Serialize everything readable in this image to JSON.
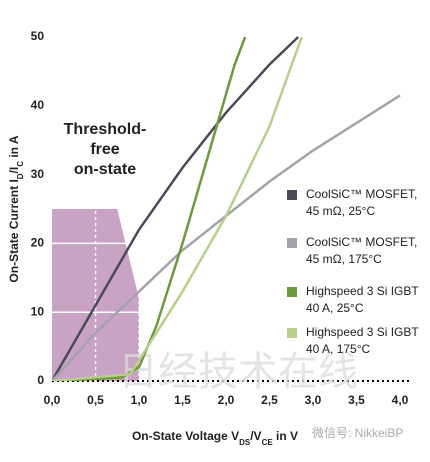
{
  "chart_data": {
    "type": "line",
    "annotation": "Threshold-free\non-state",
    "x_label_parts": [
      "On-State Voltage V",
      "DS",
      "/V",
      "CE",
      " in V"
    ],
    "y_label_parts": [
      "On-State Current I",
      "D",
      "/I",
      "C",
      " in A"
    ],
    "watermark": "日经技术在线",
    "source": "微信号: NikkeiBP",
    "xlim": [
      0,
      4
    ],
    "ylim": [
      0,
      50
    ],
    "xticks": [
      {
        "value": 0,
        "label": "0,0"
      },
      {
        "value": 0.5,
        "label": "0,5"
      },
      {
        "value": 1,
        "label": "1,0"
      },
      {
        "value": 1.5,
        "label": "1,5"
      },
      {
        "value": 2,
        "label": "2,0"
      },
      {
        "value": 2.5,
        "label": "2,5"
      },
      {
        "value": 3,
        "label": "3,0"
      },
      {
        "value": 3.5,
        "label": "3,5"
      },
      {
        "value": 4,
        "label": "4,0"
      }
    ],
    "yticks": [
      0,
      10,
      20,
      30,
      40,
      50
    ],
    "region": {
      "color": "#c9a3c4",
      "x": [
        0,
        0.75,
        1.0,
        1.0,
        0
      ],
      "y": [
        25,
        25,
        12,
        0,
        0
      ]
    },
    "series": [
      {
        "name": "CoolSiC™ MOSFET,\n45 mΩ, 25°C",
        "color": "#4a4a58",
        "x": [
          0,
          0.5,
          1.0,
          1.5,
          2.0,
          2.5,
          2.83
        ],
        "values": [
          0,
          11,
          22,
          31,
          39,
          46,
          50
        ]
      },
      {
        "name": "CoolSiC™ MOSFET,\n45 mΩ, 175°C",
        "color": "#a3a3aa",
        "x": [
          0,
          0.5,
          1.0,
          1.5,
          2.0,
          2.5,
          3.0,
          3.5,
          4.0
        ],
        "values": [
          0,
          7,
          13,
          19,
          24,
          29,
          33.5,
          37.5,
          41.5
        ]
      },
      {
        "name": "Highspeed 3 Si IGBT\n40 A, 25°C",
        "color": "#6e9a3c",
        "x": [
          0,
          0.8,
          1.0,
          1.2,
          1.5,
          1.8,
          2.1,
          2.22
        ],
        "values": [
          0,
          0.5,
          2,
          8,
          20,
          33,
          46,
          50
        ]
      },
      {
        "name": "Highspeed 3 Si IGBT\n40 A, 175°C",
        "color": "#b8cf8c",
        "x": [
          0,
          0.9,
          1.0,
          1.5,
          2.0,
          2.5,
          2.87
        ],
        "values": [
          0,
          1,
          3,
          13,
          24,
          37,
          50
        ]
      }
    ]
  }
}
